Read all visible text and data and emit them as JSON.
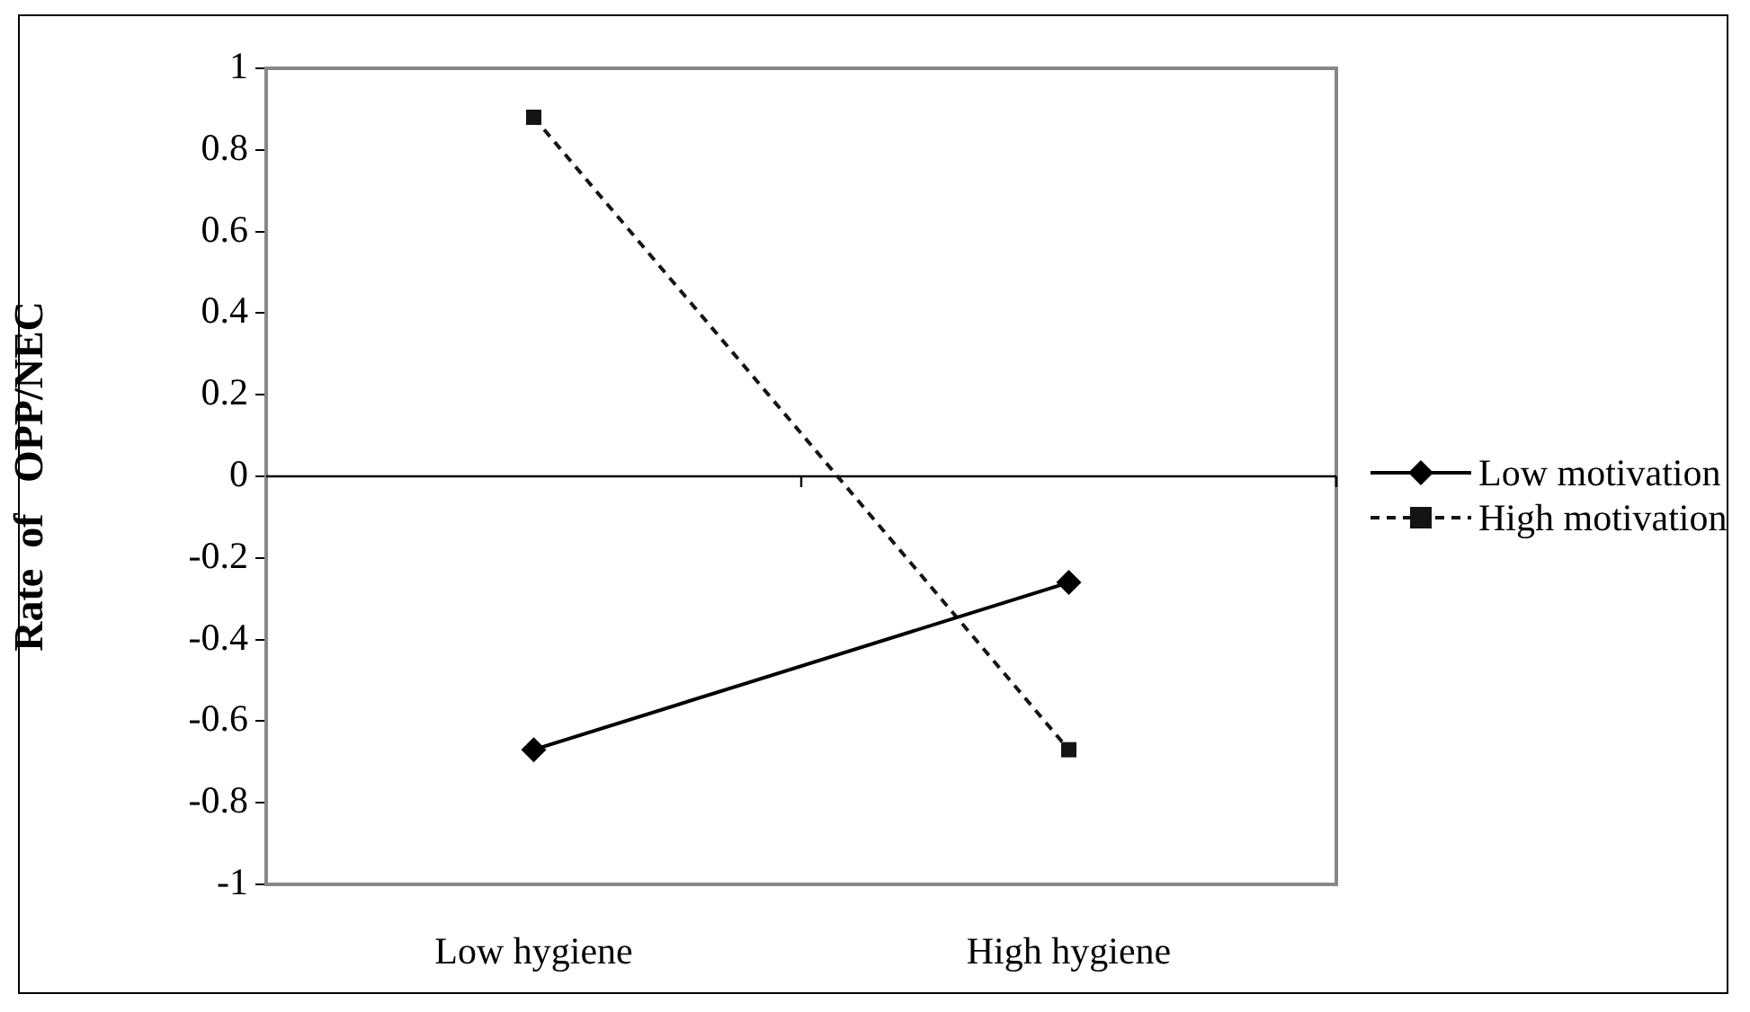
{
  "chart_data": {
    "type": "line",
    "ylabel": "Rate  of   OPP/NEC",
    "categories": [
      "Low hygiene",
      "High hygiene"
    ],
    "series": [
      {
        "name": "Low motivation",
        "color": "#000000",
        "values": [
          -0.67,
          -0.26
        ],
        "marker": "diamond",
        "line_style": "solid"
      },
      {
        "name": "High motivation",
        "color": "#141414",
        "values": [
          0.88,
          -0.67
        ],
        "marker": "square",
        "line_style": "dashed"
      }
    ],
    "ylim": [
      -1,
      1
    ],
    "yticks": [
      -1,
      -0.8,
      -0.6,
      -0.4,
      -0.2,
      0,
      0.2,
      0.4,
      0.6,
      0.8,
      1
    ],
    "grid": false,
    "legend": "right",
    "ref_lines": [
      {
        "axis": "y",
        "value": 0,
        "color": "#000000"
      }
    ]
  }
}
